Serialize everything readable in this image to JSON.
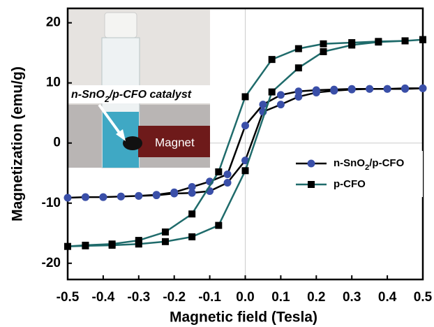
{
  "chart_data": {
    "type": "line",
    "xlabel": "Magnetic field (Tesla)",
    "ylabel": "Magnetization (emu/g)",
    "xlim": [
      -0.5,
      0.5
    ],
    "xticks": [
      -0.5,
      -0.4,
      -0.3,
      -0.2,
      -0.1,
      {
        "value": 0,
        "label": "0.0"
      },
      0.1,
      0.2,
      0.3,
      0.4,
      0.5
    ],
    "ylim": [
      -22.7,
      22.4
    ],
    "yticks": [
      -20,
      -10,
      0,
      10,
      20
    ],
    "legend": "right",
    "annotations": [
      "n-SnO2/p-CFO catalyst",
      "Magnet"
    ],
    "series": [
      {
        "name": "n-SnO2/p-CFO",
        "color": "#3a4fa8",
        "line_color": "#000000",
        "marker": "circle",
        "x": [
          0.5,
          0.45,
          0.4,
          0.35,
          0.3,
          0.25,
          0.2,
          0.15,
          0.1,
          0.05,
          0,
          -0.05,
          -0.1,
          -0.15,
          -0.2,
          -0.25,
          -0.3,
          -0.35,
          -0.4,
          -0.45,
          -0.5,
          -0.45,
          -0.4,
          -0.35,
          -0.3,
          -0.25,
          -0.2,
          -0.15,
          -0.1,
          -0.05,
          0,
          0.05,
          0.1,
          0.15,
          0.2,
          0.25,
          0.3,
          0.35,
          0.4,
          0.45,
          0.5
        ],
        "values": [
          9.1,
          9.1,
          9.0,
          9.0,
          9.0,
          8.9,
          8.8,
          8.6,
          8.0,
          6.4,
          2.9,
          -5.2,
          -6.4,
          -7.3,
          -8.2,
          -8.6,
          -8.8,
          -8.9,
          -9.0,
          -9.0,
          -9.1,
          -9.0,
          -9.0,
          -8.9,
          -8.8,
          -8.7,
          -8.4,
          -8.3,
          -8.0,
          -6.6,
          -2.9,
          5.2,
          6.4,
          7.7,
          8.4,
          8.7,
          8.9,
          9.0,
          9.0,
          9.0,
          9.1
        ]
      },
      {
        "name": "p-CFO",
        "color": "#000000",
        "line_color": "#1f6b6b",
        "marker": "square",
        "x": [
          0.5,
          0.45,
          0.375,
          0.3,
          0.22,
          0.15,
          0.075,
          0,
          -0.075,
          -0.15,
          -0.225,
          -0.3,
          -0.375,
          -0.45,
          -0.5,
          -0.45,
          -0.375,
          -0.3,
          -0.225,
          -0.15,
          -0.075,
          0,
          0.075,
          0.15,
          0.22,
          0.3,
          0.375,
          0.45,
          0.5
        ],
        "values": [
          17.2,
          17.0,
          16.9,
          16.7,
          16.5,
          15.7,
          13.9,
          7.7,
          -4.8,
          -11.8,
          -14.8,
          -16.2,
          -16.8,
          -17.0,
          -17.2,
          -17.1,
          -17.0,
          -16.8,
          -16.4,
          -15.6,
          -13.7,
          -4.6,
          8.5,
          12.5,
          15.2,
          16.3,
          16.8,
          17.0,
          17.2
        ]
      }
    ]
  }
}
